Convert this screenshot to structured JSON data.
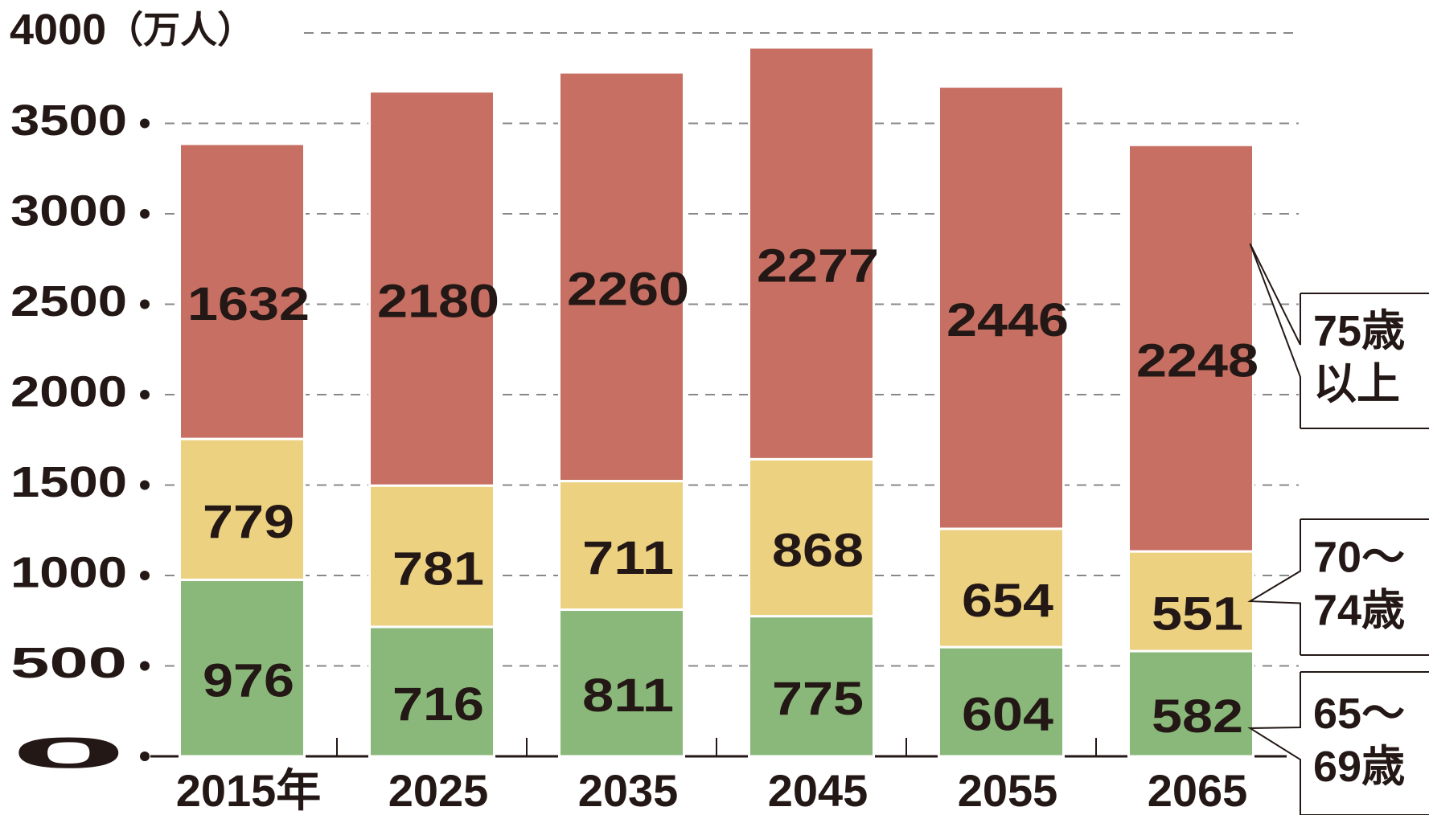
{
  "chart_data": {
    "type": "bar",
    "stacked": true,
    "y_unit": "（万人）",
    "categories": [
      "2015年",
      "2025",
      "2035",
      "2045",
      "2055",
      "2065"
    ],
    "series": [
      {
        "name": "65〜69歳",
        "color": "#8ab87a",
        "label_color": "#ffffff",
        "values": [
          976,
          716,
          811,
          775,
          604,
          582
        ]
      },
      {
        "name": "70〜74歳",
        "color": "#ecd181",
        "label_color": "#231815",
        "values": [
          779,
          781,
          711,
          868,
          654,
          551
        ]
      },
      {
        "name": "75歳以上",
        "color": "#c76f62",
        "label_color": "#ffffff",
        "values": [
          1632,
          2180,
          2260,
          2277,
          2446,
          2248
        ]
      }
    ],
    "ylim": [
      0,
      4000
    ],
    "yticks": [
      0,
      500,
      1000,
      1500,
      2000,
      2500,
      3000,
      3500,
      4000
    ],
    "grid": true
  }
}
